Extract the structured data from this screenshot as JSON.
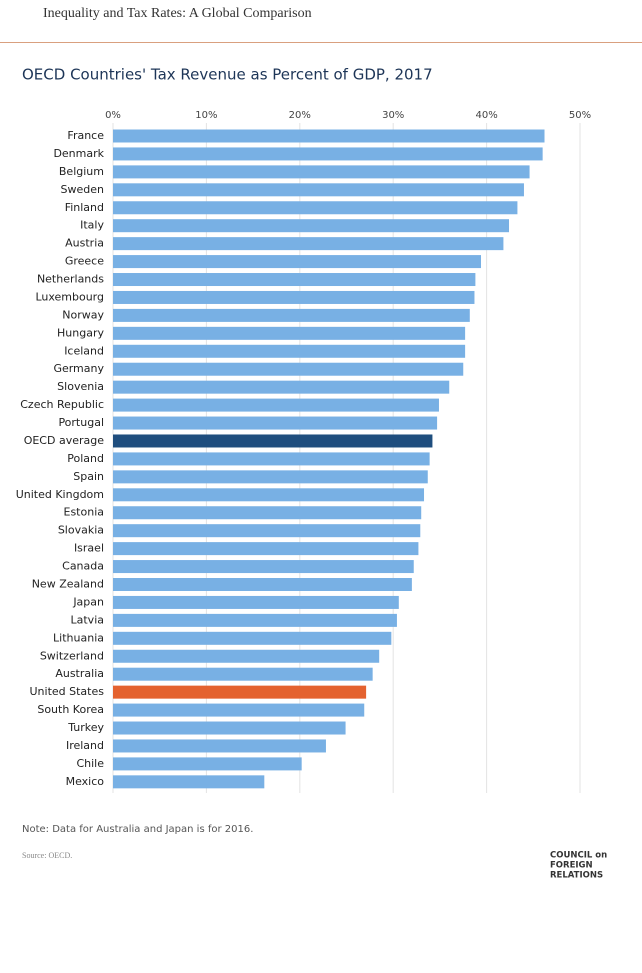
{
  "header": {
    "title": "Inequality and Tax Rates: A Global Comparison"
  },
  "chart_data": {
    "type": "bar",
    "orientation": "horizontal",
    "title": "OECD Countries' Tax Revenue as Percent of GDP, 2017",
    "categories": [
      "France",
      "Denmark",
      "Belgium",
      "Sweden",
      "Finland",
      "Italy",
      "Austria",
      "Greece",
      "Netherlands",
      "Luxembourg",
      "Norway",
      "Hungary",
      "Iceland",
      "Germany",
      "Slovenia",
      "Czech Republic",
      "Portugal",
      "OECD average",
      "Poland",
      "Spain",
      "United Kingdom",
      "Estonia",
      "Slovakia",
      "Israel",
      "Canada",
      "New Zealand",
      "Japan",
      "Latvia",
      "Lithuania",
      "Switzerland",
      "Australia",
      "United States",
      "South Korea",
      "Turkey",
      "Ireland",
      "Chile",
      "Mexico"
    ],
    "values": [
      46.2,
      46.0,
      44.6,
      44.0,
      43.3,
      42.4,
      41.8,
      39.4,
      38.8,
      38.7,
      38.2,
      37.7,
      37.7,
      37.5,
      36.0,
      34.9,
      34.7,
      34.2,
      33.9,
      33.7,
      33.3,
      33.0,
      32.9,
      32.7,
      32.2,
      32.0,
      30.6,
      30.4,
      29.8,
      28.5,
      27.8,
      27.1,
      26.9,
      24.9,
      22.8,
      20.2,
      16.2
    ],
    "colors": [
      "#78b0e4",
      "#78b0e4",
      "#78b0e4",
      "#78b0e4",
      "#78b0e4",
      "#78b0e4",
      "#78b0e4",
      "#78b0e4",
      "#78b0e4",
      "#78b0e4",
      "#78b0e4",
      "#78b0e4",
      "#78b0e4",
      "#78b0e4",
      "#78b0e4",
      "#78b0e4",
      "#78b0e4",
      "#1f4e7e",
      "#78b0e4",
      "#78b0e4",
      "#78b0e4",
      "#78b0e4",
      "#78b0e4",
      "#78b0e4",
      "#78b0e4",
      "#78b0e4",
      "#78b0e4",
      "#78b0e4",
      "#78b0e4",
      "#78b0e4",
      "#78b0e4",
      "#e4622f",
      "#78b0e4",
      "#78b0e4",
      "#78b0e4",
      "#78b0e4",
      "#78b0e4"
    ],
    "xlim": [
      0,
      50
    ],
    "xticks": [
      {
        "value": 0,
        "label": "0%"
      },
      {
        "value": 10,
        "label": "10%"
      },
      {
        "value": 20,
        "label": "20%"
      },
      {
        "value": 30,
        "label": "30%"
      },
      {
        "value": 40,
        "label": "40%"
      },
      {
        "value": 50,
        "label": "50%"
      }
    ],
    "grid": true,
    "note": "Note: Data for Australia and Japan is for 2016.",
    "source": "Source: OECD.",
    "logo": [
      "COUNCIL on",
      "FOREIGN",
      "RELATIONS"
    ]
  }
}
